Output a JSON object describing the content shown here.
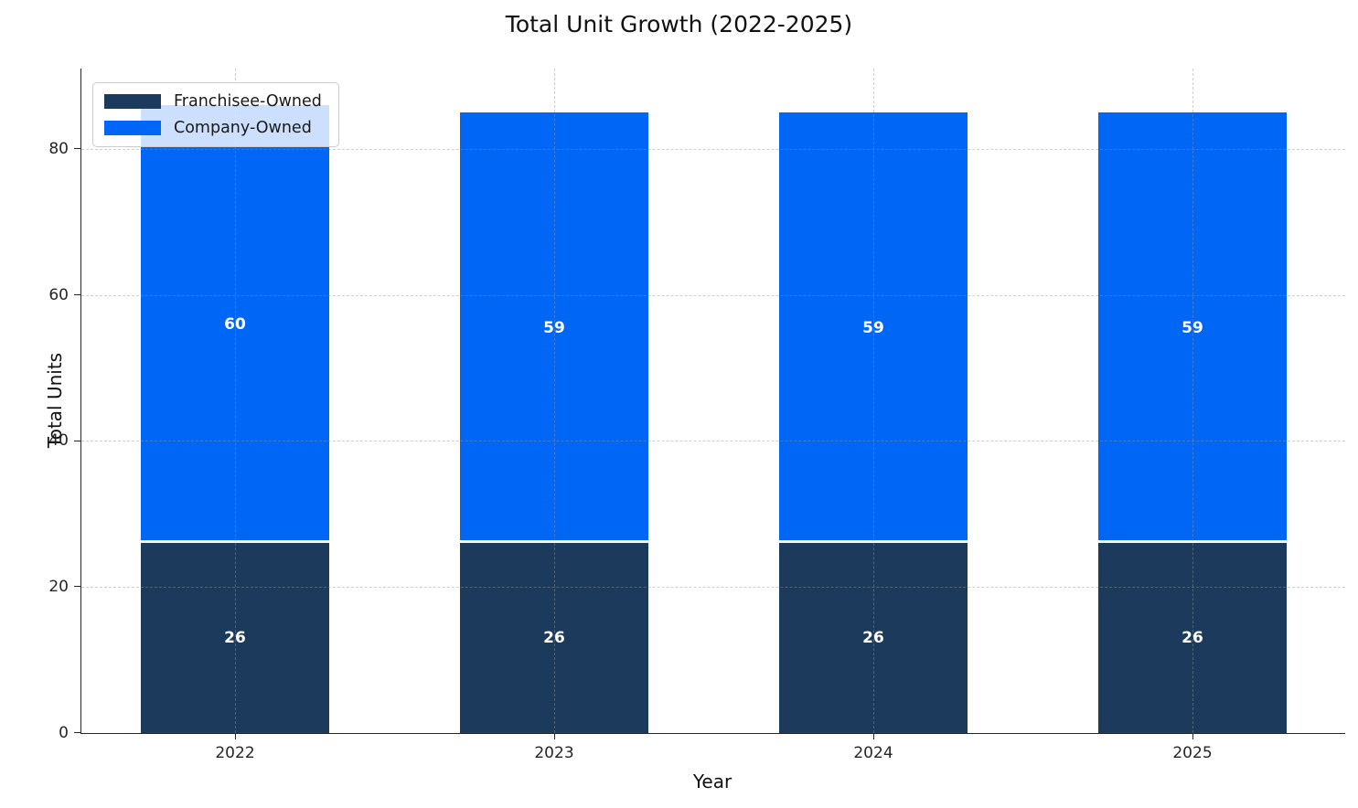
{
  "chart_data": {
    "type": "bar",
    "stacked": true,
    "title": "Total Unit Growth (2022-2025)",
    "xlabel": "Year",
    "ylabel": "Total Units",
    "categories": [
      "2022",
      "2023",
      "2024",
      "2025"
    ],
    "series": [
      {
        "name": "Franchisee-Owned",
        "color": "#1b3a5c",
        "values": [
          26,
          26,
          26,
          26
        ]
      },
      {
        "name": "Company-Owned",
        "color": "#0066f5",
        "values": [
          60,
          59,
          59,
          59
        ]
      }
    ],
    "bar_value_labels": {
      "Franchisee-Owned": [
        "26",
        "26",
        "26",
        "26"
      ],
      "Company-Owned": [
        "60",
        "59",
        "59",
        "59"
      ]
    },
    "yticks": [
      0,
      20,
      40,
      60,
      80
    ],
    "ylim": [
      0,
      91
    ],
    "grid": "dashed-both-axes",
    "legend_position": "upper-left",
    "label_text_color": "#ffffff",
    "segment_separator_color": "#ffffff",
    "axis_color": "#262626"
  }
}
